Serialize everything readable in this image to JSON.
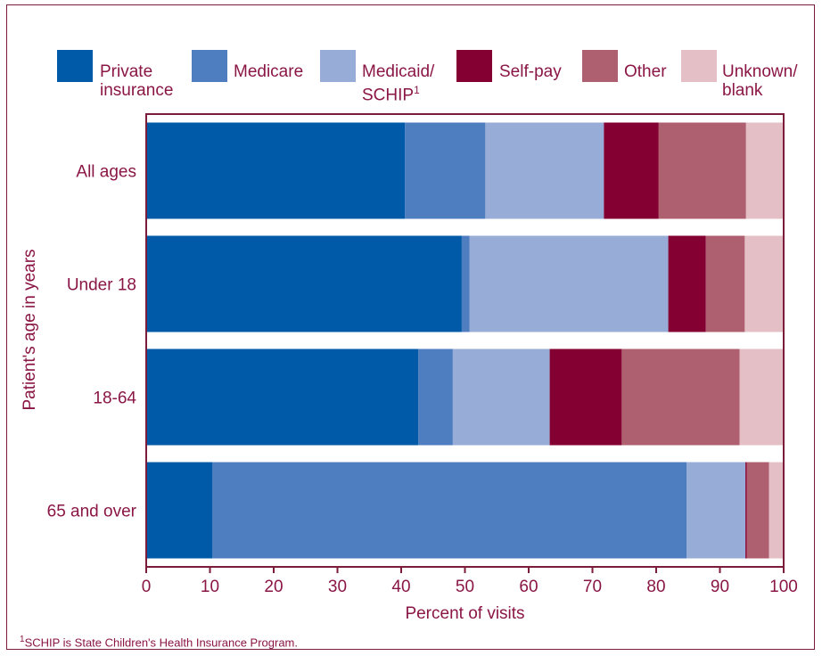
{
  "chart_data": {
    "type": "bar",
    "orientation": "horizontal",
    "stacked": true,
    "categories": [
      "All ages",
      "Under 18",
      "18-64",
      "65 and over"
    ],
    "series": [
      {
        "name": "Private insurance",
        "color": "#005aa8",
        "values": [
          40.6,
          49.5,
          42.7,
          10.4
        ]
      },
      {
        "name": "Medicare",
        "color": "#4f7ec0",
        "values": [
          12.6,
          1.2,
          5.4,
          74.4
        ]
      },
      {
        "name": "Medicaid/ SCHIP",
        "superscript": "1",
        "color": "#97acd6",
        "values": [
          18.6,
          31.2,
          15.2,
          9.2
        ]
      },
      {
        "name": "Self-pay",
        "color": "#840032",
        "values": [
          8.6,
          5.9,
          11.3,
          0.2
        ]
      },
      {
        "name": "Other",
        "color": "#af6070",
        "values": [
          13.7,
          6.1,
          18.5,
          3.5
        ]
      },
      {
        "name": "Unknown/ blank",
        "color": "#e4c0c6",
        "values": [
          5.9,
          6.1,
          6.9,
          2.3
        ]
      }
    ],
    "xlim": [
      0,
      100
    ],
    "xticks": [
      0,
      10,
      20,
      30,
      40,
      50,
      60,
      70,
      80,
      90,
      100
    ],
    "xlabel": "Percent of visits",
    "ylabel": "Patient's age in years",
    "legend_position": "top"
  },
  "legend": [
    {
      "line1": "Private",
      "line2": "insurance",
      "sup": "",
      "color": "#005aa8"
    },
    {
      "line1": "Medicare",
      "line2": "",
      "sup": "",
      "color": "#4f7ec0"
    },
    {
      "line1": "Medicaid/",
      "line2": "SCHIP",
      "sup": "1",
      "color": "#97acd6"
    },
    {
      "line1": "Self-pay",
      "line2": "",
      "sup": "",
      "color": "#840032"
    },
    {
      "line1": "Other",
      "line2": "",
      "sup": "",
      "color": "#af6070"
    },
    {
      "line1": "Unknown/",
      "line2": "blank",
      "sup": "",
      "color": "#e4c0c6"
    }
  ],
  "footnote": {
    "sup": "1",
    "text": "SCHIP is State Children's Health Insurance Program."
  }
}
